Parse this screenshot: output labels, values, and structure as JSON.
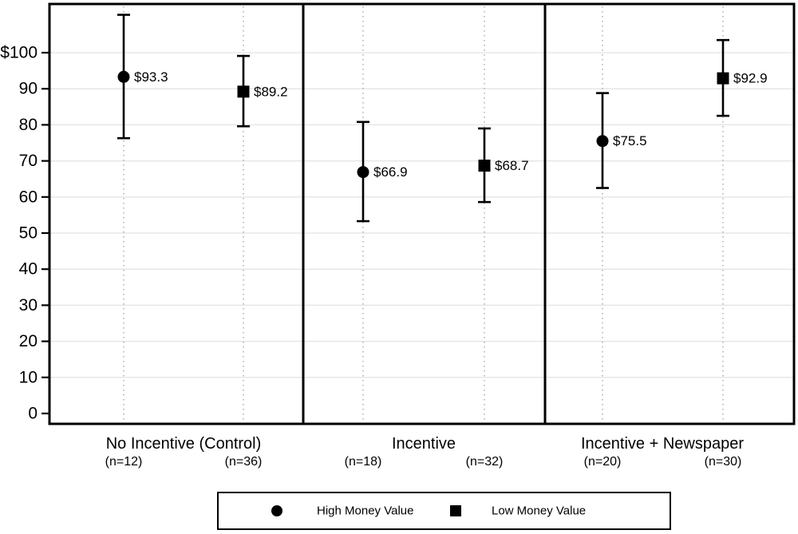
{
  "figure": {
    "background": "#ffffff",
    "border_color": "#000000",
    "grid_color": "#e4e4e4",
    "guide_color": "#999999",
    "marker_color": "#000000",
    "text_color": "#000000"
  },
  "chart_data": {
    "type": "scatter",
    "title": "",
    "xlabel": "",
    "ylabel": "",
    "ylim": [
      0,
      113
    ],
    "yticks": [
      0,
      10,
      20,
      30,
      40,
      50,
      60,
      70,
      80,
      90,
      100
    ],
    "ytick_labels": [
      "0",
      "10",
      "20",
      "30",
      "40",
      "50",
      "60",
      "70",
      "80",
      "90",
      "$100"
    ],
    "grid": true,
    "legend_position": "bottom",
    "categories": [
      "No Incentive (Control)",
      "Incentive",
      "Incentive + Newspaper"
    ],
    "series": [
      {
        "name": "High Money Value",
        "marker": "circle",
        "values": [
          93.3,
          66.9,
          75.5
        ],
        "value_labels": [
          "$93.3",
          "$66.9",
          "$75.5"
        ],
        "n_labels": [
          "(n=12)",
          "(n=18)",
          "(n=20)"
        ],
        "ci_low": [
          76.3,
          53.3,
          62.5
        ],
        "ci_high": [
          110.5,
          80.8,
          88.8
        ]
      },
      {
        "name": "Low Money Value",
        "marker": "square",
        "values": [
          89.2,
          68.7,
          92.9
        ],
        "value_labels": [
          "$89.2",
          "$68.7",
          "$92.9"
        ],
        "n_labels": [
          "(n=36)",
          "(n=32)",
          "(n=30)"
        ],
        "ci_low": [
          79.6,
          58.6,
          82.5
        ],
        "ci_high": [
          99.1,
          79.0,
          103.5
        ]
      }
    ],
    "legend": [
      {
        "marker": "circle",
        "label": "High Money Value"
      },
      {
        "marker": "square",
        "label": "Low Money Value"
      }
    ]
  }
}
